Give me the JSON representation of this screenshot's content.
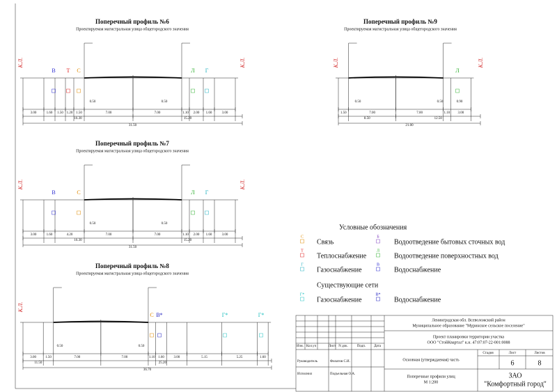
{
  "profiles": [
    {
      "title": "Поперечный профиль №6",
      "subtitle": "Проектируемая магистральная улица общегородского значения",
      "kl": [
        "К.Л.",
        "К.Л."
      ],
      "utilities": [
        {
          "letter": "В",
          "color": "#2a2ad0"
        },
        {
          "letter": "Т",
          "color": "#e02020"
        },
        {
          "letter": "С",
          "color": "#e08a00"
        },
        {
          "letter": "Л",
          "color": "#30b030"
        },
        {
          "letter": "Г",
          "color": "#20b0c0"
        }
      ],
      "offsets": [
        "0.50",
        "0.50"
      ],
      "dims": [
        "3.00",
        "1.60",
        "1.50",
        "1.20",
        "1.50",
        "7.00",
        "7.00",
        "1.10",
        "2.00",
        "1.60",
        "3.00"
      ],
      "subtotals": [
        "16.30",
        "15.20"
      ],
      "total": "31.50"
    },
    {
      "title": "Поперечный профиль №7",
      "subtitle": "Проектируемая магистральная улица общегородского значения",
      "kl": [
        "К.Л.",
        "К.Л."
      ],
      "utilities": [
        {
          "letter": "В",
          "color": "#2a2ad0"
        },
        {
          "letter": "С",
          "color": "#e08a00"
        },
        {
          "letter": "Л",
          "color": "#30b030"
        },
        {
          "letter": "Г",
          "color": "#20b0c0"
        }
      ],
      "offsets": [
        "0.50",
        "0.50"
      ],
      "dims": [
        "3.00",
        "1.60",
        "4.20",
        "7.00",
        "7.00",
        "1.10",
        "2.00",
        "1.60",
        "3.00"
      ],
      "subtotals": [
        "16.30",
        "15.20"
      ],
      "total": "31.50"
    },
    {
      "title": "Поперечный профиль №8",
      "subtitle": "Проектируемая магистральная улица общегородского значения",
      "kl": [
        "К.Л."
      ],
      "utilities": [
        {
          "letter": "С",
          "color": "#e08a00"
        },
        {
          "letter": "В*",
          "color": "#2020c0"
        },
        {
          "letter": "Г*",
          "color": "#20c0c0"
        },
        {
          "letter": "Г*",
          "color": "#20c0c0"
        }
      ],
      "offsets": [
        "0.50",
        "0.50"
      ],
      "dims": [
        "3.00",
        "1.50",
        "7.00",
        "7.00",
        "1.10",
        "1.60",
        "3.00",
        "5.15",
        "5.25",
        "1.60"
      ],
      "subtotals": [
        "11.50",
        "25.20"
      ],
      "total": "36.70"
    },
    {
      "title": "Поперечный профиль №9",
      "subtitle": "Проектируемая магистральная улица общегородского значения",
      "kl": [
        "К.Л.",
        "К.Л."
      ],
      "utilities": [
        {
          "letter": "Л",
          "color": "#30b030"
        }
      ],
      "offsets": [
        "0.50",
        "0.50",
        "0.90"
      ],
      "dims": [
        "1.50",
        "7.00",
        "7.00",
        "1.10",
        "3.00"
      ],
      "subtotals": [
        "8.50",
        "12.50"
      ],
      "total": "21.00"
    }
  ],
  "legend": {
    "title": "Условные обозначения",
    "items": [
      {
        "letter": "С",
        "label": "Связь",
        "color": "#e08a00"
      },
      {
        "letter": "Б",
        "label": "Водоотведение бытовых сточных вод",
        "color": "#8040c0"
      },
      {
        "letter": "Т",
        "label": "Теплоснабжение",
        "color": "#e02020"
      },
      {
        "letter": "Л",
        "label": "Водоотведение поверхностных вод",
        "color": "#30b030"
      },
      {
        "letter": "Г",
        "label": "Газоснабжение",
        "color": "#20b0c0"
      },
      {
        "letter": "В",
        "label": "Водоснабжение",
        "color": "#2a2ad0"
      }
    ],
    "existing_title": "Существующие сети",
    "existing": [
      {
        "letter": "Г*",
        "label": "Газоснабжение",
        "color": "#20c0c0"
      },
      {
        "letter": "В*",
        "label": "Водоснабжение",
        "color": "#2020c0"
      }
    ]
  },
  "title_block": {
    "region": "Ленинградская обл. Всеволожский район",
    "municipality": "Муниципальное образование \"Муринское сельское поселение\"",
    "project": "Проект планировки территории участка",
    "customer": "ООО \"СтойКвартал\" к.н. 47:07:07-22-001:0088",
    "headers": [
      "Изм.",
      "Кол.уч",
      "Лист",
      "N док.",
      "Подп.",
      "Дата"
    ],
    "stage_headers": [
      "Стадия",
      "Лист",
      "Листов"
    ],
    "sheet": "6",
    "sheets": "8",
    "part": "Основная (утверждаемая) часть",
    "roles": [
      {
        "role": "Руководитель",
        "name": "Филатов С.И."
      },
      {
        "role": "Исполнил",
        "name": "Подъельная О.А."
      }
    ],
    "drawing": "Поперечные профили улиц",
    "scale": "М 1:200",
    "company": "ЗАО",
    "company_name": "\"Комфортный город\""
  }
}
